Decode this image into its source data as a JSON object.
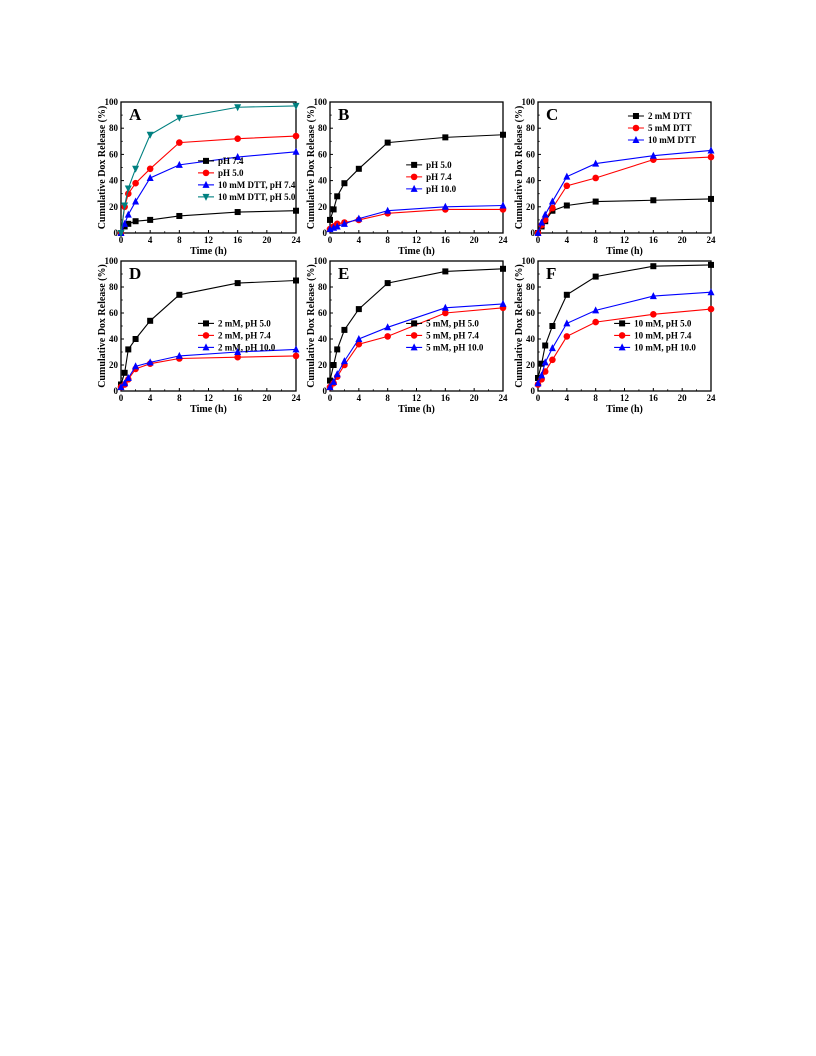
{
  "chart_data": [
    {
      "type": "line",
      "panel_label": "A",
      "xlabel": "Time (h)",
      "ylabel": "Cumulative Dox Release (%)",
      "xlim": [
        0,
        24
      ],
      "ylim": [
        0,
        100
      ],
      "xticks": [
        0,
        4,
        8,
        12,
        16,
        20,
        24
      ],
      "yticks": [
        0,
        20,
        40,
        60,
        80,
        100
      ],
      "legend": "right-middle",
      "x": [
        0,
        0.5,
        1,
        2,
        4,
        8,
        16,
        24
      ],
      "series": [
        {
          "name": "pH 7.4",
          "color": "#000000",
          "marker": "square",
          "values": [
            0,
            5,
            7,
            9,
            10,
            13,
            16,
            17
          ]
        },
        {
          "name": "pH 5.0",
          "color": "#ff0000",
          "marker": "circle",
          "values": [
            0,
            20,
            30,
            38,
            49,
            69,
            72,
            74
          ]
        },
        {
          "name": "10 mM DTT, pH 7.4",
          "color": "#0000ff",
          "marker": "triangle-up",
          "values": [
            0,
            7,
            14,
            24,
            42,
            52,
            58,
            62
          ]
        },
        {
          "name": "10 mM DTT, pH 5.0",
          "color": "#008080",
          "marker": "triangle-down",
          "values": [
            0,
            21,
            34,
            49,
            75,
            88,
            96,
            97
          ]
        }
      ]
    },
    {
      "type": "line",
      "panel_label": "B",
      "xlabel": "Time (h)",
      "ylabel": "Cumulative Dox Release (%)",
      "xlim": [
        0,
        24
      ],
      "ylim": [
        0,
        100
      ],
      "xticks": [
        0,
        4,
        8,
        12,
        16,
        20,
        24
      ],
      "yticks": [
        0,
        20,
        40,
        60,
        80,
        100
      ],
      "legend": "right-middle",
      "x": [
        0,
        0.5,
        1,
        2,
        4,
        8,
        16,
        24
      ],
      "series": [
        {
          "name": "pH 5.0",
          "color": "#000000",
          "marker": "square",
          "values": [
            10,
            18,
            28,
            38,
            49,
            69,
            73,
            75
          ]
        },
        {
          "name": "pH 7.4",
          "color": "#ff0000",
          "marker": "circle",
          "values": [
            3,
            5,
            7,
            8,
            10,
            15,
            18,
            18
          ]
        },
        {
          "name": "pH 10.0",
          "color": "#0000ff",
          "marker": "triangle-up",
          "values": [
            3,
            4,
            5,
            7,
            11,
            17,
            20,
            21
          ]
        }
      ]
    },
    {
      "type": "line",
      "panel_label": "C",
      "xlabel": "Time (h)",
      "ylabel": "Cumulative Dox Release (%)",
      "xlim": [
        0,
        24
      ],
      "ylim": [
        0,
        100
      ],
      "xticks": [
        0,
        4,
        8,
        12,
        16,
        20,
        24
      ],
      "yticks": [
        0,
        20,
        40,
        60,
        80,
        100
      ],
      "legend": "top-right",
      "x": [
        0,
        0.5,
        1,
        2,
        4,
        8,
        16,
        24
      ],
      "series": [
        {
          "name": "2 mM DTT",
          "color": "#000000",
          "marker": "square",
          "values": [
            0,
            5,
            9,
            17,
            21,
            24,
            25,
            26
          ]
        },
        {
          "name": "5 mM DTT",
          "color": "#ff0000",
          "marker": "circle",
          "values": [
            0,
            6,
            10,
            19,
            36,
            42,
            56,
            58
          ]
        },
        {
          "name": "10 mM DTT",
          "color": "#0000ff",
          "marker": "triangle-up",
          "values": [
            0,
            8,
            14,
            24,
            43,
            53,
            59,
            63
          ]
        }
      ]
    },
    {
      "type": "line",
      "panel_label": "D",
      "xlabel": "Time (h)",
      "ylabel": "Cumulative Dox Release (%)",
      "xlim": [
        0,
        24
      ],
      "ylim": [
        0,
        100
      ],
      "xticks": [
        0,
        4,
        8,
        12,
        16,
        20,
        24
      ],
      "yticks": [
        0,
        20,
        40,
        60,
        80,
        100
      ],
      "legend": "right-middle",
      "x": [
        0,
        0.5,
        1,
        2,
        4,
        8,
        16,
        24
      ],
      "series": [
        {
          "name": "2 mM, pH 5.0",
          "color": "#000000",
          "marker": "square",
          "values": [
            5,
            14,
            32,
            40,
            54,
            74,
            83,
            85
          ]
        },
        {
          "name": "2 mM, pH 7.4",
          "color": "#ff0000",
          "marker": "circle",
          "values": [
            3,
            5,
            9,
            17,
            21,
            25,
            26,
            27
          ]
        },
        {
          "name": "2 mM, pH 10.0",
          "color": "#0000ff",
          "marker": "triangle-up",
          "values": [
            3,
            6,
            10,
            19,
            22,
            27,
            30,
            32
          ]
        }
      ]
    },
    {
      "type": "line",
      "panel_label": "E",
      "xlabel": "Time (h)",
      "ylabel": "Cumulative Dox Release (%)",
      "xlim": [
        0,
        24
      ],
      "ylim": [
        0,
        100
      ],
      "xticks": [
        0,
        4,
        8,
        12,
        16,
        20,
        24
      ],
      "yticks": [
        0,
        20,
        40,
        60,
        80,
        100
      ],
      "legend": "right-middle",
      "x": [
        0,
        0.5,
        1,
        2,
        4,
        8,
        16,
        24
      ],
      "series": [
        {
          "name": "5 mM, pH 5.0",
          "color": "#000000",
          "marker": "square",
          "values": [
            8,
            20,
            32,
            47,
            63,
            83,
            92,
            94
          ]
        },
        {
          "name": "5 mM, pH 7.4",
          "color": "#ff0000",
          "marker": "circle",
          "values": [
            3,
            6,
            11,
            20,
            36,
            42,
            60,
            64
          ]
        },
        {
          "name": "5 mM, pH 10.0",
          "color": "#0000ff",
          "marker": "triangle-up",
          "values": [
            3,
            7,
            13,
            23,
            40,
            49,
            64,
            67
          ]
        }
      ]
    },
    {
      "type": "line",
      "panel_label": "F",
      "xlabel": "Time (h)",
      "ylabel": "Cumulative Dox Release (%)",
      "xlim": [
        0,
        24
      ],
      "ylim": [
        0,
        100
      ],
      "xticks": [
        0,
        4,
        8,
        12,
        16,
        20,
        24
      ],
      "yticks": [
        0,
        20,
        40,
        60,
        80,
        100
      ],
      "legend": "right-middle",
      "x": [
        0,
        0.5,
        1,
        2,
        4,
        8,
        16,
        24
      ],
      "series": [
        {
          "name": "10 mM, pH 5.0",
          "color": "#000000",
          "marker": "square",
          "values": [
            10,
            21,
            35,
            50,
            74,
            88,
            96,
            97
          ]
        },
        {
          "name": "10 mM, pH 7.4",
          "color": "#ff0000",
          "marker": "circle",
          "values": [
            5,
            9,
            15,
            24,
            42,
            53,
            59,
            63
          ]
        },
        {
          "name": "10 mM, pH 10.0",
          "color": "#0000ff",
          "marker": "triangle-up",
          "values": [
            6,
            12,
            22,
            33,
            52,
            62,
            73,
            76
          ]
        }
      ]
    }
  ]
}
